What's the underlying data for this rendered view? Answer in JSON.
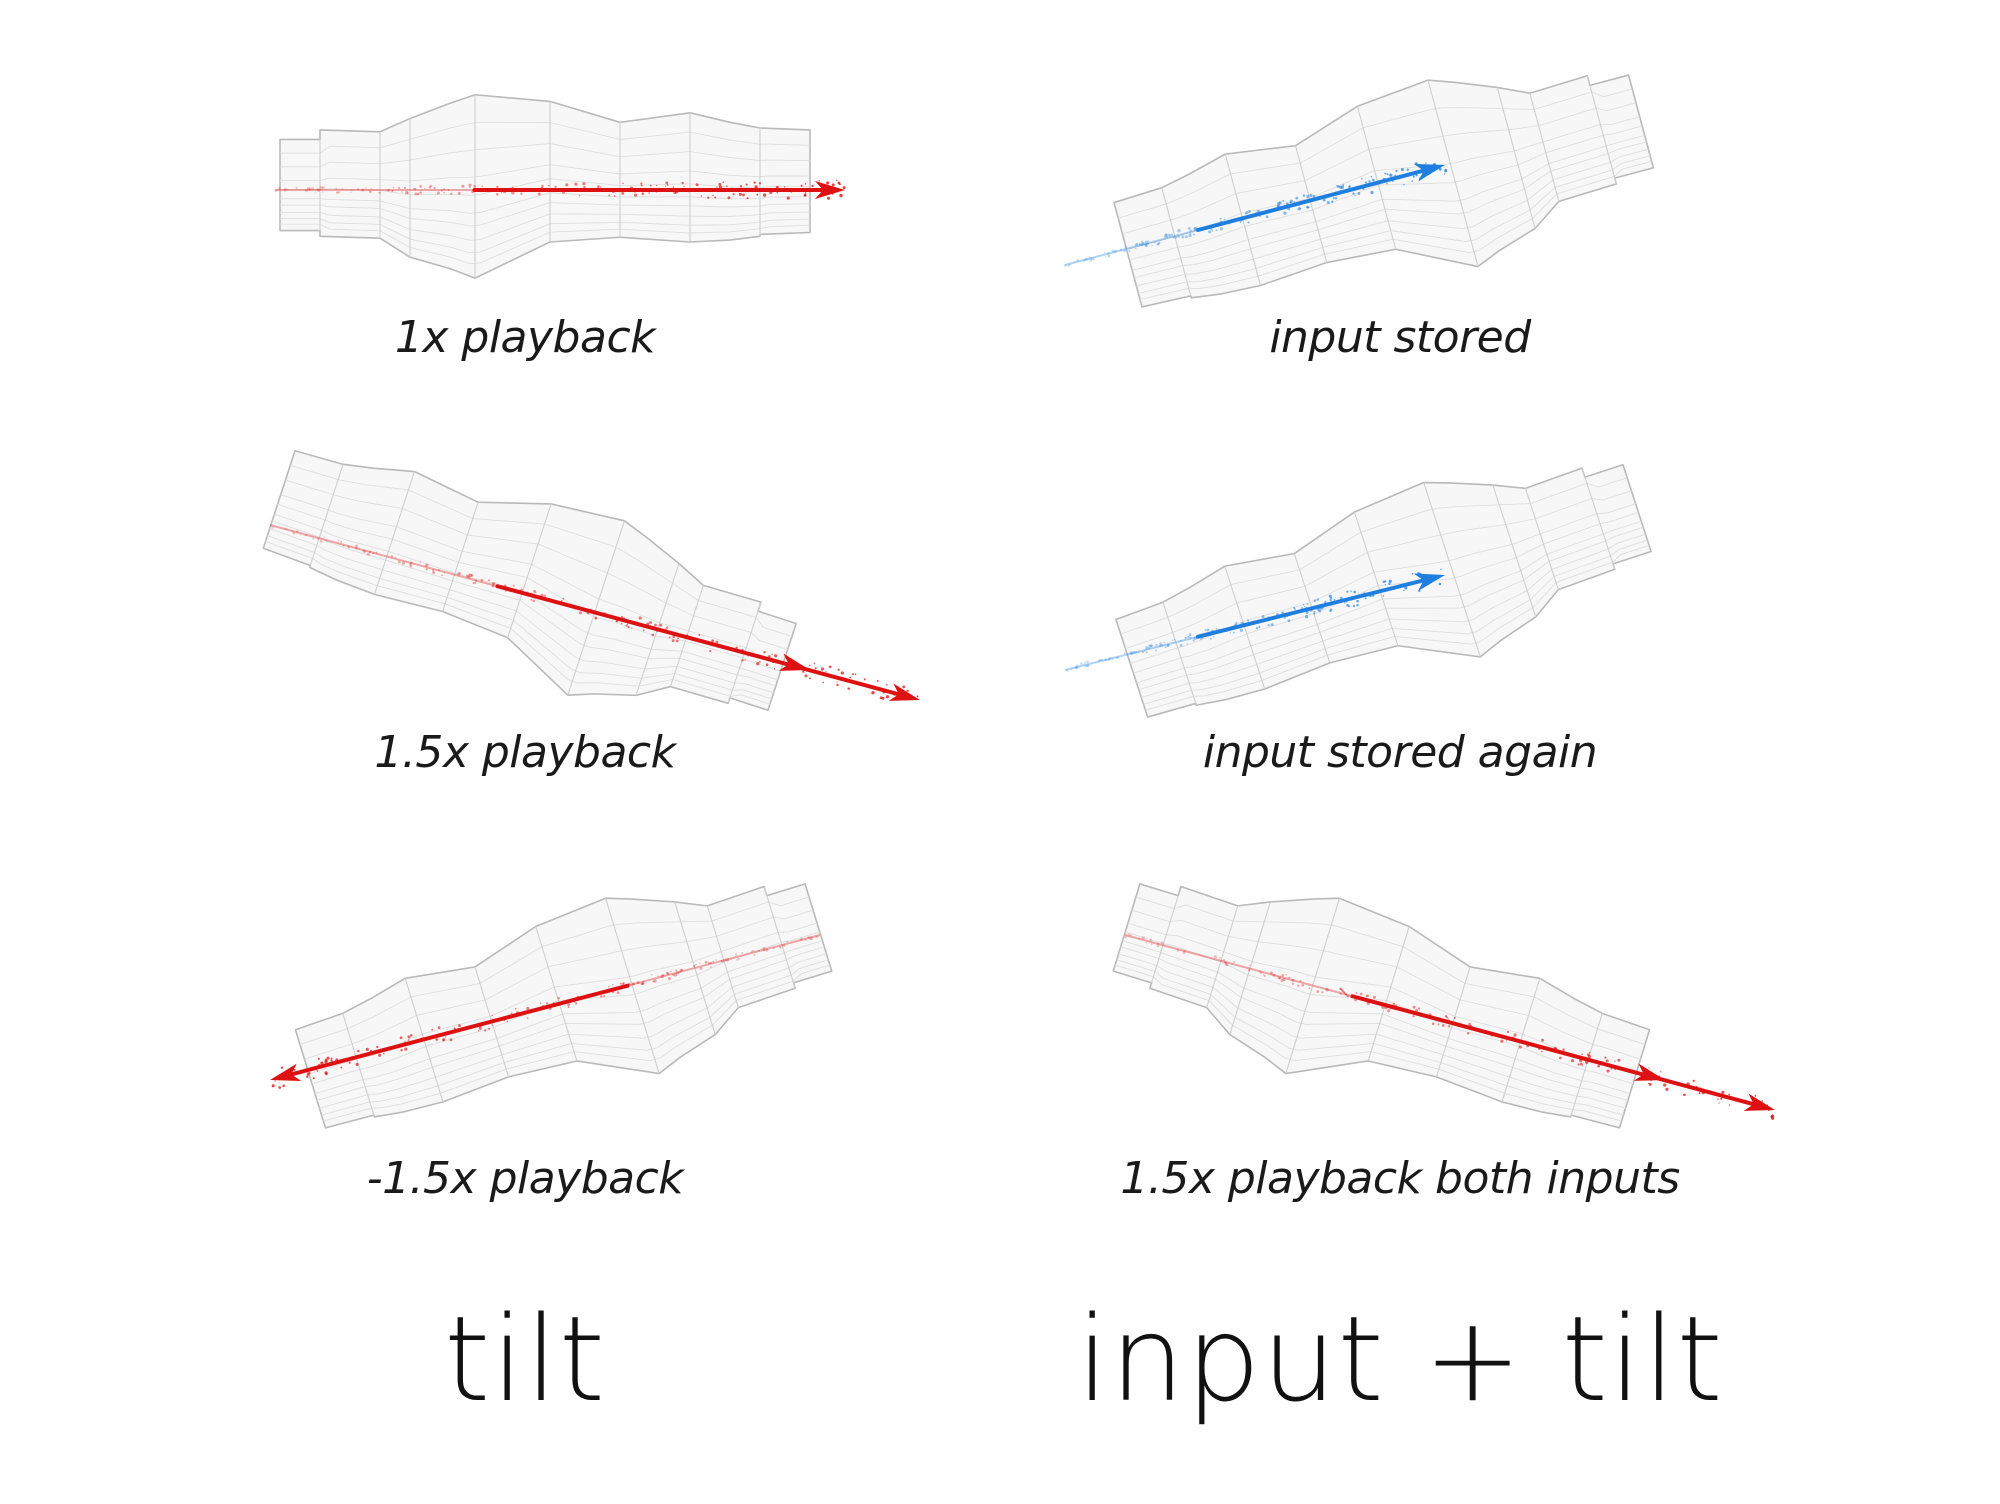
{
  "columns": [
    {
      "heading": "tilt"
    },
    {
      "heading": "input + tilt"
    }
  ],
  "panels": [
    {
      "caption": "1x playback",
      "arrow_color": "#dd1111"
    },
    {
      "caption": "input stored",
      "arrow_color": "#1f7fe0"
    },
    {
      "caption": "1.5x playback",
      "arrow_color": "#dd1111"
    },
    {
      "caption": "input stored again",
      "arrow_color": "#1f7fe0"
    },
    {
      "caption": "-1.5x playback",
      "arrow_color": "#dd1111"
    },
    {
      "caption": "1.5x playback both inputs",
      "arrow_color": "#dd1111"
    }
  ],
  "colors": {
    "tube_stroke": "#b9b9b9",
    "tube_mesh": "#dedede",
    "tube_fill": "#f7f7f7",
    "red": "#dd1111",
    "blue": "#1f7fe0"
  }
}
